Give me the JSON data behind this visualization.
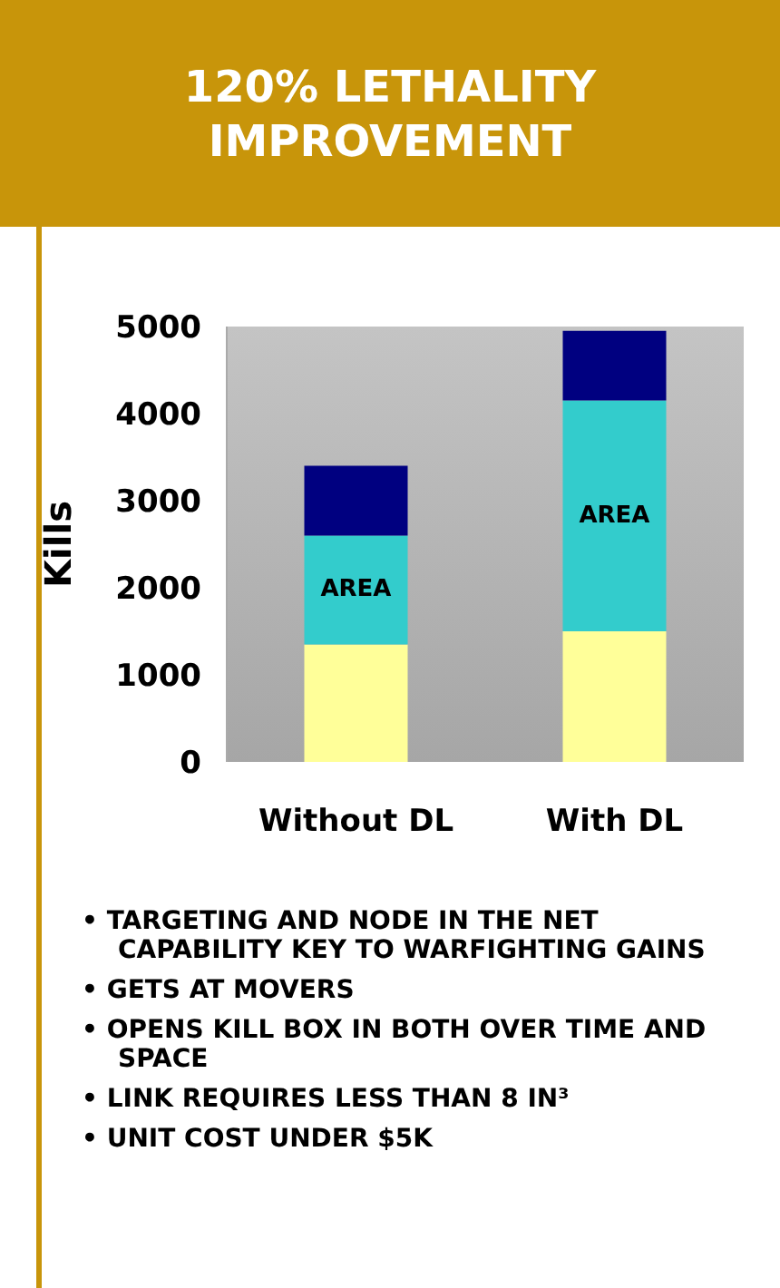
{
  "chart_data": {
    "type": "bar",
    "title": "120% LETHALITY IMPROVEMENT",
    "ylabel": "Kills",
    "categories": [
      "Without DL",
      "With DL"
    ],
    "series": [
      {
        "color": "#ffff99",
        "values": [
          1350,
          1500
        ]
      },
      {
        "color": "#33cccc",
        "values": [
          1250,
          2650
        ],
        "value_labels": [
          "AREA",
          "AREA"
        ]
      },
      {
        "color": "#000080",
        "values": [
          800,
          800
        ]
      }
    ],
    "stacked": true,
    "ylim": [
      0,
      5000
    ],
    "yticks": [
      0,
      1000,
      2000,
      3000,
      4000,
      5000
    ],
    "legend": false,
    "annotations": [
      "• TARGETING AND NODE IN THE NET CAPABILITY KEY TO WARFIGHTING GAINS",
      "• GETS AT MOVERS",
      "• OPENS KILL BOX IN BOTH OVER TIME AND SPACE",
      "• LINK REQUIRES LESS THAN 8 IN³",
      "• UNIT COST UNDER $5K"
    ]
  }
}
